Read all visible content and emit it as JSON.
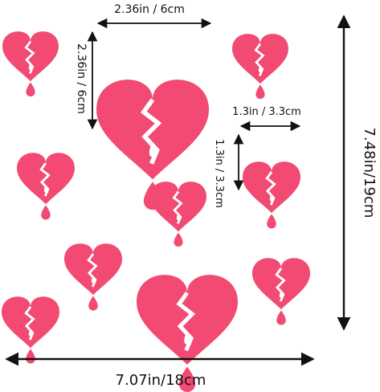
{
  "colors": {
    "heart": "#f24a72",
    "drop": "#f24a72",
    "crack": "#ffffff",
    "arrow": "#111111"
  },
  "icons": {
    "heart": "broken-heart-icon",
    "drop": "teardrop-icon"
  },
  "dimensions": {
    "width_label": "7.07in/18cm",
    "height_label": "7.48in/19cm",
    "large_heart_width": "2.36in / 6cm",
    "large_heart_height": "2.36in / 6cm",
    "small_heart_width": "1.3in / 3.3cm",
    "small_heart_height": "1.3in / 3.3cm"
  },
  "hearts": [
    {
      "name": "heart-small-top-left"
    },
    {
      "name": "heart-large-top"
    },
    {
      "name": "heart-small-top-right"
    },
    {
      "name": "heart-small-mid-left"
    },
    {
      "name": "heart-small-center"
    },
    {
      "name": "heart-small-right"
    },
    {
      "name": "heart-small-lower-left"
    },
    {
      "name": "heart-large-bottom"
    },
    {
      "name": "heart-small-lower-right"
    },
    {
      "name": "heart-small-bottom-left"
    }
  ]
}
